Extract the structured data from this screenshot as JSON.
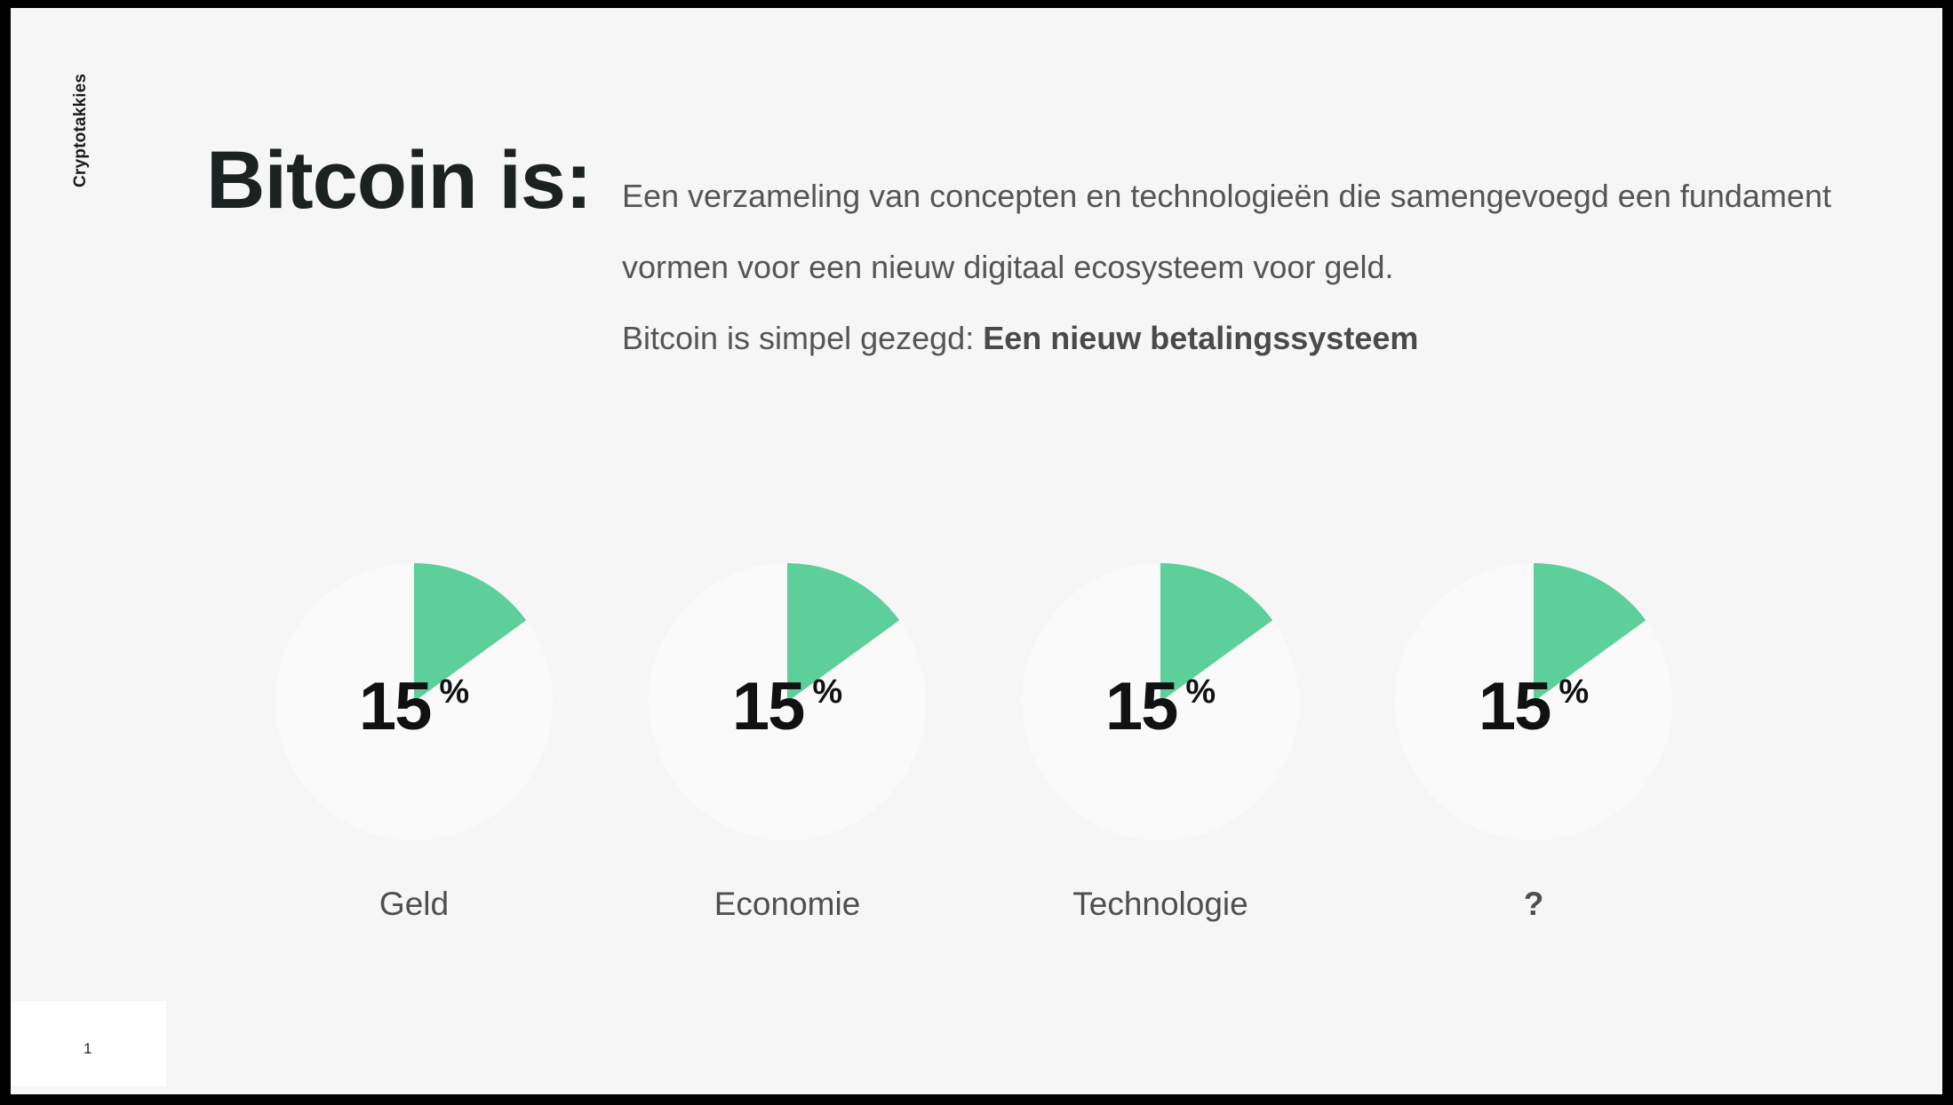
{
  "brand": "Cryptotakkies",
  "title": "Bitcoin is:",
  "description": {
    "line1": "Een verzameling van concepten en technologieën die samengevoegd een fundament vormen voor een nieuw digitaal ecosysteem voor geld.",
    "line2_prefix": "Bitcoin is simpel gezegd: ",
    "line2_bold": "Een nieuw betalingssysteem"
  },
  "colors": {
    "accent": "#5ccf9b",
    "circle": "#fafafa",
    "background": "#f6f6f6"
  },
  "chart_data": [
    {
      "type": "pie",
      "label": "Geld",
      "value": 15,
      "unit": "%"
    },
    {
      "type": "pie",
      "label": "Economie",
      "value": 15,
      "unit": "%"
    },
    {
      "type": "pie",
      "label": "Technologie",
      "value": 15,
      "unit": "%"
    },
    {
      "type": "pie",
      "label": "?",
      "value": 15,
      "unit": "%"
    }
  ],
  "page_number": "1"
}
